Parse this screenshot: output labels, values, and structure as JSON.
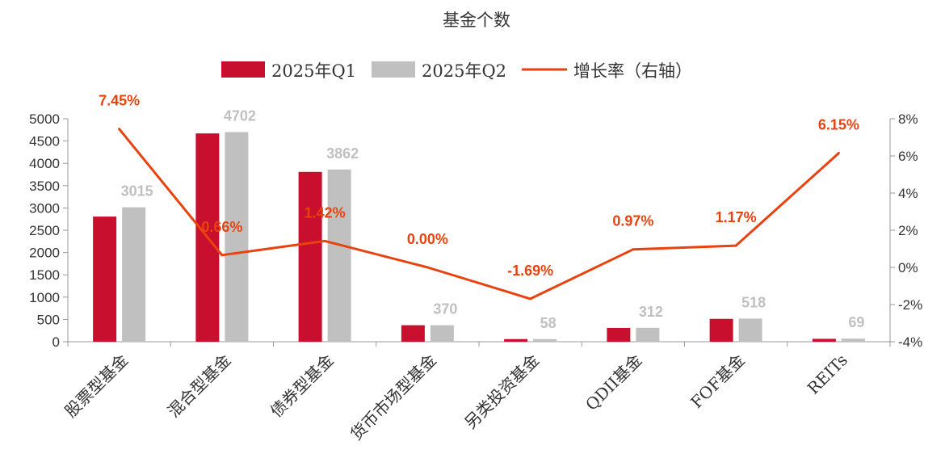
{
  "chart_data": {
    "type": "bar",
    "title": "基金个数",
    "categories": [
      "股票型基金",
      "混合型基金",
      "债券型基金",
      "货币市场型基金",
      "另类投资基金",
      "QDII基金",
      "FOF基金",
      "REITs"
    ],
    "series": [
      {
        "name": "2025年Q1",
        "type": "bar",
        "axis": "left",
        "color": "#c8102e",
        "values": [
          2806,
          4671,
          3808,
          370,
          59,
          309,
          512,
          65
        ]
      },
      {
        "name": "2025年Q2",
        "type": "bar",
        "axis": "left",
        "color": "#c0c0c0",
        "values": [
          3015,
          4702,
          3862,
          370,
          58,
          312,
          518,
          69
        ]
      },
      {
        "name": "增长率（右轴）",
        "type": "line",
        "axis": "right",
        "color": "#e8430f",
        "values": [
          7.45,
          0.66,
          1.42,
          0.0,
          -1.69,
          0.97,
          1.17,
          6.15
        ]
      }
    ],
    "bar_labels": [
      "3015",
      "4702",
      "3862",
      "370",
      "58",
      "312",
      "518",
      "69"
    ],
    "line_labels": [
      "7.45%",
      "0.66%",
      "1.42%",
      "0.00%",
      "-1.69%",
      "0.97%",
      "1.17%",
      "6.15%"
    ],
    "y_left": {
      "lim": [
        0,
        5000
      ],
      "ticks": [
        "0",
        "500",
        "1000",
        "1500",
        "2000",
        "2500",
        "3000",
        "3500",
        "4000",
        "4500",
        "5000"
      ]
    },
    "y_right": {
      "lim": [
        -4,
        8
      ],
      "ticks": [
        "-4%",
        "-2%",
        "0%",
        "2%",
        "4%",
        "6%",
        "8%"
      ]
    },
    "legend_position": "top",
    "grid": false
  }
}
